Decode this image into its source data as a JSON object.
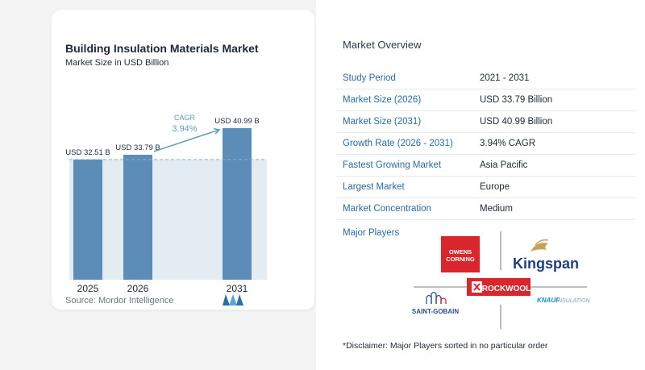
{
  "chart": {
    "title": "Building Insulation Materials Market",
    "subtitle": "Market Size in USD Billion",
    "source": "Source:  Mordor Intelligence"
  },
  "chart_data": {
    "type": "bar",
    "title": "Building Insulation Materials Market",
    "subtitle": "Market Size in USD Billion",
    "categories": [
      "2025",
      "2026",
      "2031"
    ],
    "values": [
      32.51,
      33.79,
      40.99
    ],
    "value_labels": [
      "USD 32.51 B",
      "USD 33.79 B",
      "USD 40.99 B"
    ],
    "ylim": [
      0,
      42.5
    ],
    "annotation": {
      "label": "CAGR",
      "value": "3.94%"
    },
    "grid": false,
    "colors": {
      "bar": "#5b8db8",
      "shade": "#e3ebf3",
      "annotation": "#5e9db8"
    }
  },
  "overview": {
    "title": "Market Overview",
    "rows": [
      {
        "label": "Study Period",
        "value": "2021 - 2031"
      },
      {
        "label": "Market Size (2026)",
        "value": "USD 33.79 Billion"
      },
      {
        "label": "Market Size (2031)",
        "value": "USD 40.99 Billion"
      },
      {
        "label": "Growth Rate (2026 - 2031)",
        "value": "3.94% CAGR"
      },
      {
        "label": "Fastest Growing Market",
        "value": "Asia Pacific"
      },
      {
        "label": "Largest Market",
        "value": "Europe"
      },
      {
        "label": "Market Concentration",
        "value": "Medium"
      }
    ],
    "players_title": "Major Players",
    "players": [
      {
        "name": "Owens Corning",
        "logo_text": [
          "OWENS",
          "CORNING"
        ],
        "color": "#d9262c"
      },
      {
        "name": "Kingspan",
        "logo_text": [
          "Kingspan"
        ],
        "color": "#1e3f80"
      },
      {
        "name": "Rockwool",
        "logo_text": [
          "ROCKWOOL"
        ],
        "color": "#d9262c"
      },
      {
        "name": "Saint-Gobain",
        "logo_text": [
          "SAINT-GOBAIN"
        ],
        "color": "#2a4f8c"
      },
      {
        "name": "Knauf Insulation",
        "logo_text": [
          "KNAUF",
          "INSULATION"
        ],
        "color": "#1a8ccf"
      }
    ],
    "disclaimer": "*Disclaimer: Major Players sorted in no particular order"
  }
}
